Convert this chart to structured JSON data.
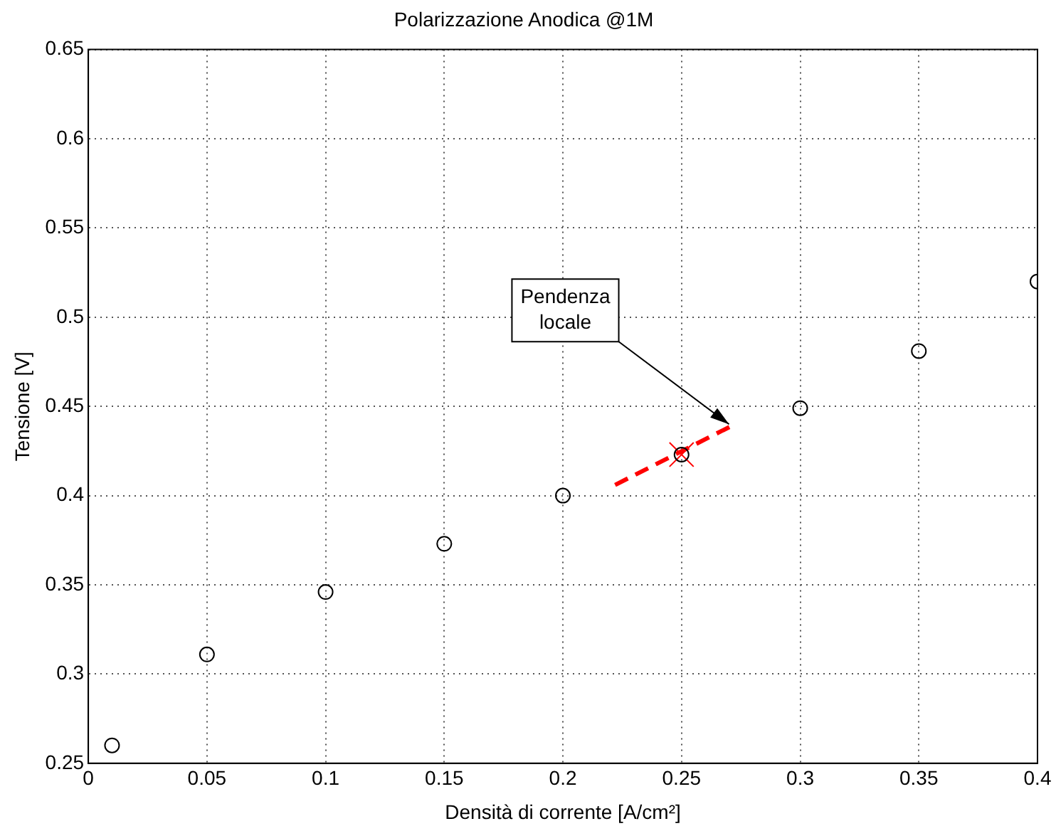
{
  "chart_data": {
    "type": "scatter",
    "title": "Polarizzazione Anodica @1M",
    "xlabel": "Densità di corrente [A/cm²]",
    "ylabel": "Tensione [V]",
    "series": [
      {
        "type": "scatter",
        "color": "#000000",
        "marker": "circle",
        "x": [
          0.01,
          0.05,
          0.1,
          0.15,
          0.2,
          0.25,
          0.3,
          0.35,
          0.4
        ],
        "values": [
          0.26,
          0.311,
          0.346,
          0.373,
          0.4,
          0.423,
          0.449,
          0.481,
          0.52
        ]
      },
      {
        "type": "line",
        "color": "#ff0000",
        "line_style": "dashed",
        "marker": "none",
        "x": [
          0.222,
          0.271
        ],
        "values": [
          0.406,
          0.439
        ]
      },
      {
        "type": "scatter",
        "color": "#ff0000",
        "marker": "cross",
        "x": [
          0.25
        ],
        "values": [
          0.423
        ]
      }
    ],
    "xlim": [
      0,
      0.4
    ],
    "xticks": [
      0,
      0.05,
      0.1,
      0.15,
      0.2,
      0.25,
      0.3,
      0.35,
      0.4
    ],
    "ylim": [
      0.25,
      0.65
    ],
    "yticks": [
      0.25,
      0.3,
      0.35,
      0.4,
      0.45,
      0.5,
      0.55,
      0.6,
      0.65
    ],
    "grid": true,
    "legend": false,
    "annotations": [
      {
        "text": "Pendenza locale",
        "x": 0.27,
        "y": 0.44
      }
    ]
  }
}
